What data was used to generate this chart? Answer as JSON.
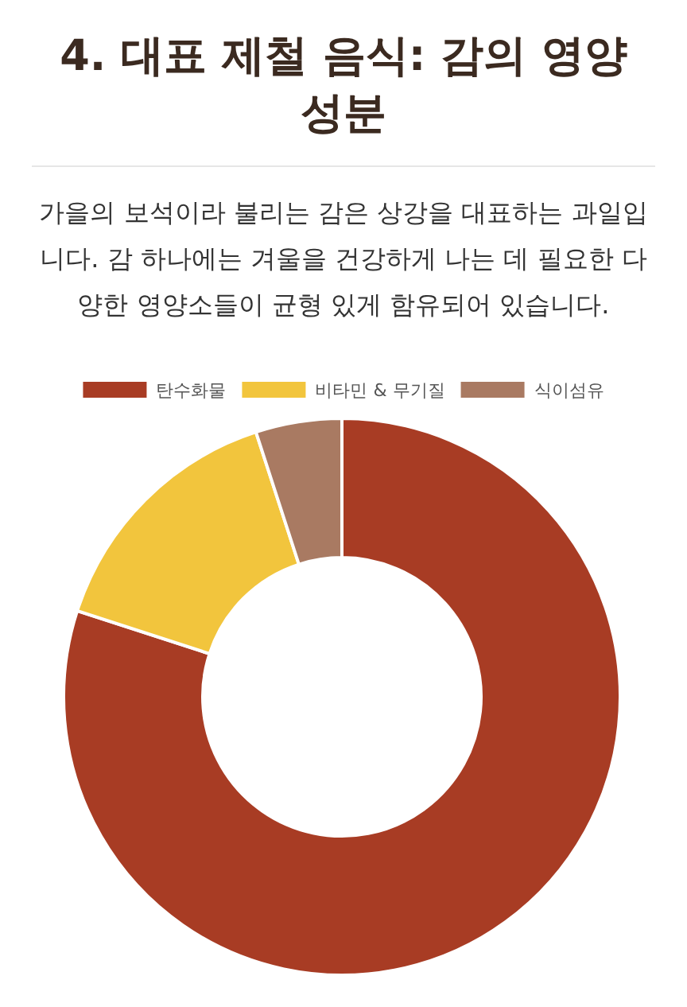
{
  "chart_data": {
    "type": "donut",
    "title": "4. 대표 제철 음식: 감의 영양 성분",
    "subtitle": "가을의 보석이라 불리는 감은 상강을 대표하는 과일입니다. 감 하나에는 겨울을 건강하게 나는 데 필요한 다양한 영양소들이 균형 있게 함유되어 있습니다.",
    "categories": [
      "탄수화물",
      "비타민 & 무기질",
      "식이섬유"
    ],
    "values": [
      80,
      15,
      5
    ],
    "colors": [
      "#a83c24",
      "#f2c53d",
      "#a97a62"
    ],
    "legend": "top"
  }
}
